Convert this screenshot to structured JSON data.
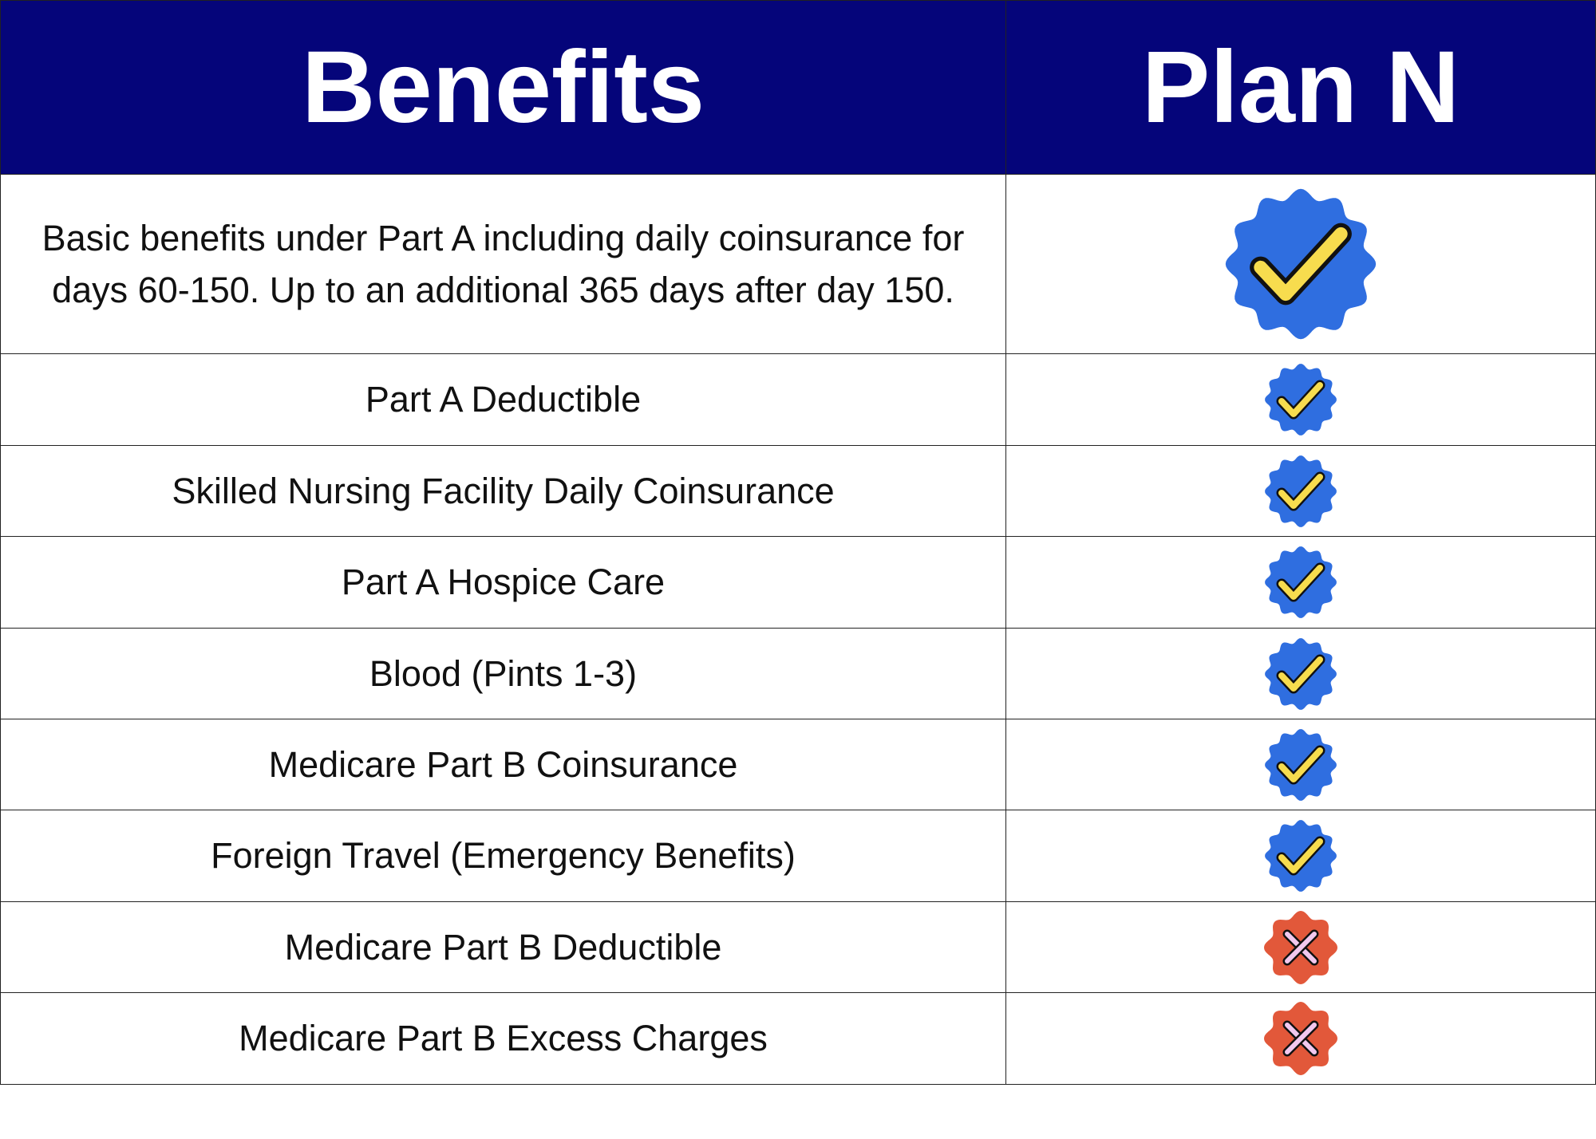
{
  "header": {
    "benefits": "Benefits",
    "plan": "Plan N"
  },
  "table": {
    "rows": [
      {
        "benefit": "Basic benefits under Part A including daily coinsurance for days 60-150.  Up to an additional 365 days after day 150.",
        "covered": true
      },
      {
        "benefit": "Part A Deductible",
        "covered": true
      },
      {
        "benefit": "Skilled Nursing Facility Daily Coinsurance",
        "covered": true
      },
      {
        "benefit": "Part A Hospice Care",
        "covered": true
      },
      {
        "benefit": "Blood (Pints 1-3)",
        "covered": true
      },
      {
        "benefit": "Medicare Part B Coinsurance",
        "covered": true
      },
      {
        "benefit": "Foreign Travel (Emergency Benefits)",
        "covered": true
      },
      {
        "benefit": "Medicare Part B Deductible",
        "covered": false
      },
      {
        "benefit": "Medicare Part B Excess Charges",
        "covered": false
      }
    ]
  }
}
